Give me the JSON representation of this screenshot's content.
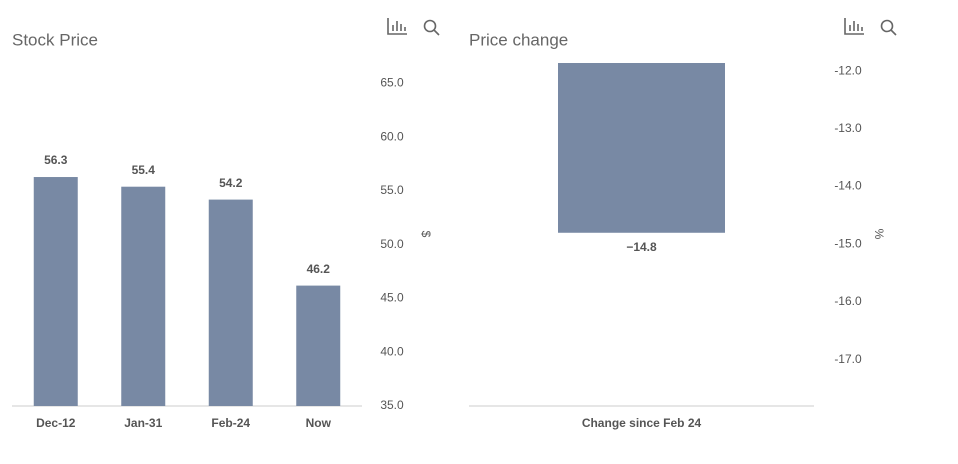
{
  "chart_data": [
    {
      "type": "bar",
      "title": "Stock Price",
      "y_label": "$",
      "categories": [
        "Dec-12",
        "Jan-31",
        "Feb-24",
        "Now"
      ],
      "values": [
        56.3,
        55.4,
        54.2,
        46.2
      ],
      "color": "#7889a4",
      "ylim": [
        35,
        67
      ],
      "yticks": [
        {
          "value": 35,
          "label": "35.0"
        },
        {
          "value": 40,
          "label": "40.0"
        },
        {
          "value": 45,
          "label": "45.0"
        },
        {
          "value": 50,
          "label": "50.0"
        },
        {
          "value": 55,
          "label": "55.0"
        },
        {
          "value": 60,
          "label": "60.0"
        },
        {
          "value": 65,
          "label": "65.0"
        }
      ],
      "grid": false
    },
    {
      "type": "bar",
      "title": "Price change",
      "y_label": "%",
      "categories": [
        "Change since Feb 24"
      ],
      "values": [
        -14.8
      ],
      "value_labels": [
        "−14.8"
      ],
      "color": "#7889a4",
      "ylim": [
        -17.8,
        -11.86
      ],
      "yticks": [
        {
          "value": -17,
          "label": "-17.0"
        },
        {
          "value": -16,
          "label": "-16.0"
        },
        {
          "value": -15,
          "label": "-15.0"
        },
        {
          "value": -14,
          "label": "-14.0"
        },
        {
          "value": -13,
          "label": "-13.0"
        },
        {
          "value": -12,
          "label": "-12.0"
        }
      ],
      "grid": false
    }
  ]
}
